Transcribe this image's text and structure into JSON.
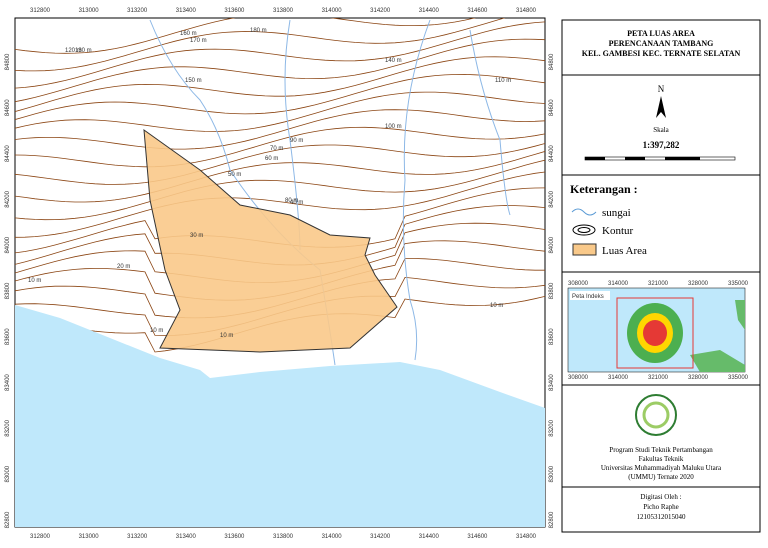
{
  "map": {
    "x_labels": [
      "312800",
      "313000",
      "313200",
      "313400",
      "313600",
      "313800",
      "314000",
      "314200",
      "314400",
      "314600",
      "314800"
    ],
    "y_labels": [
      "84800",
      "84600",
      "84400",
      "84200",
      "84000",
      "83800",
      "83600",
      "83400",
      "83200",
      "83000",
      "82800"
    ],
    "contour_labels": [
      "180 m",
      "170 m",
      "160 m",
      "150 m",
      "140 m",
      "130 m",
      "120 m",
      "110 m",
      "100 m",
      "90 m",
      "80 m",
      "70 m",
      "60 m",
      "50 m",
      "40 m",
      "30 m",
      "20 m",
      "10 m",
      "10 m",
      "10 m",
      "10 m"
    ]
  },
  "panel": {
    "title": [
      "PETA LUAS AREA",
      "PERENCANAAN TAMBANG",
      "KEL. GAMBESI KEC. TERNATE SELATAN"
    ],
    "north": "N",
    "scale_label": "Skala",
    "scale": "1:397,282",
    "legend_title": "Keterangan :",
    "legend": [
      "sungai",
      "Kontur",
      "Luas Area"
    ],
    "inset_title": "Peta Indeks",
    "inset_x_labels": [
      "308000",
      "314000",
      "321000",
      "328000",
      "335000"
    ],
    "institution": [
      "Program Studi Teknik Pertambangan",
      "Fakultas Teknik",
      "Universitas Muhammadiyah Maluku Utara",
      "(UMMU) Ternate 2020"
    ],
    "digitized_label": "Digitasi Oleh :",
    "author": "Picho Raphe",
    "author_id": "12105312015040"
  }
}
